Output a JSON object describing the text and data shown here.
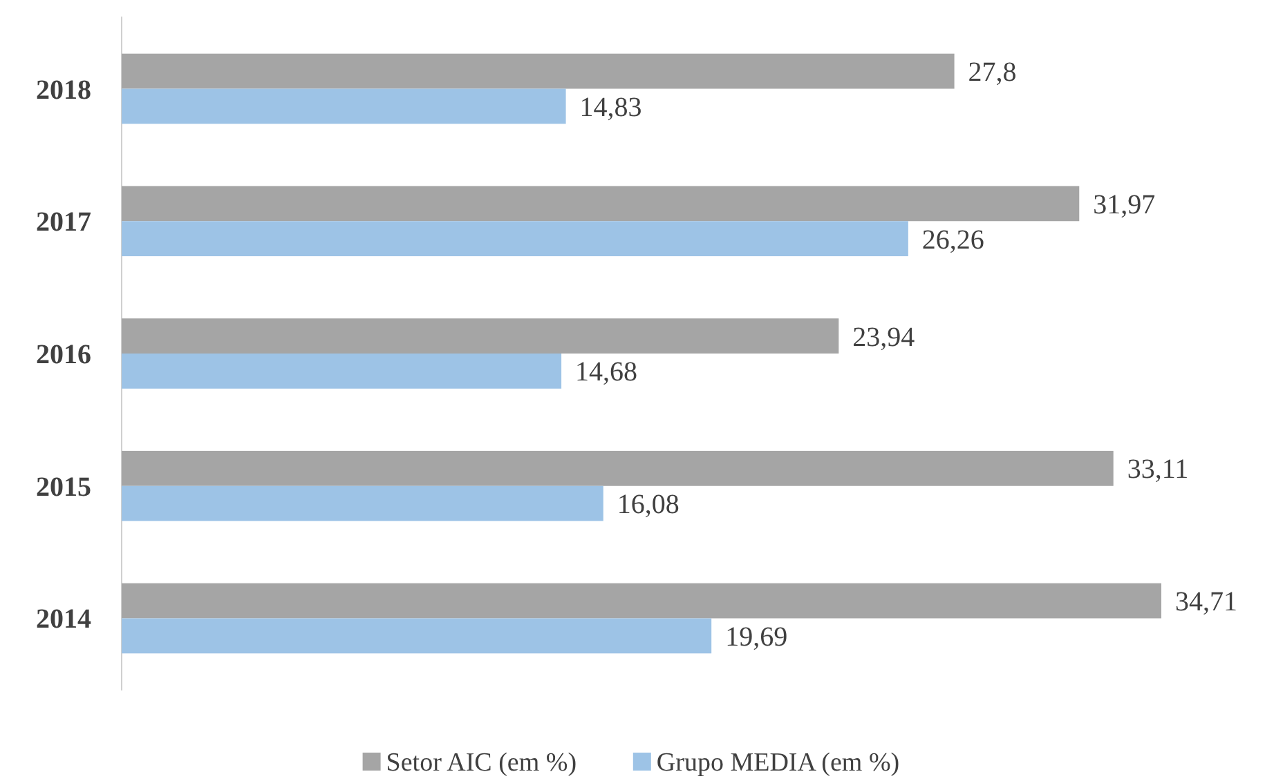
{
  "chart_data": {
    "type": "bar",
    "orientation": "horizontal",
    "categories": [
      "2018",
      "2017",
      "2016",
      "2015",
      "2014"
    ],
    "series": [
      {
        "name": "Setor AIC (em %)",
        "color": "#a5a5a5",
        "values": [
          27.8,
          31.97,
          23.94,
          33.11,
          34.71
        ],
        "value_labels": [
          "27,8",
          "31,97",
          "23,94",
          "33,11",
          "34,71"
        ]
      },
      {
        "name": "Grupo MEDIA (em %)",
        "color": "#9dc3e6",
        "values": [
          14.83,
          26.26,
          14.68,
          16.08,
          19.69
        ],
        "value_labels": [
          "14,83",
          "26,26",
          "14,68",
          "16,08",
          "19,69"
        ]
      }
    ],
    "legend": "bottom"
  }
}
